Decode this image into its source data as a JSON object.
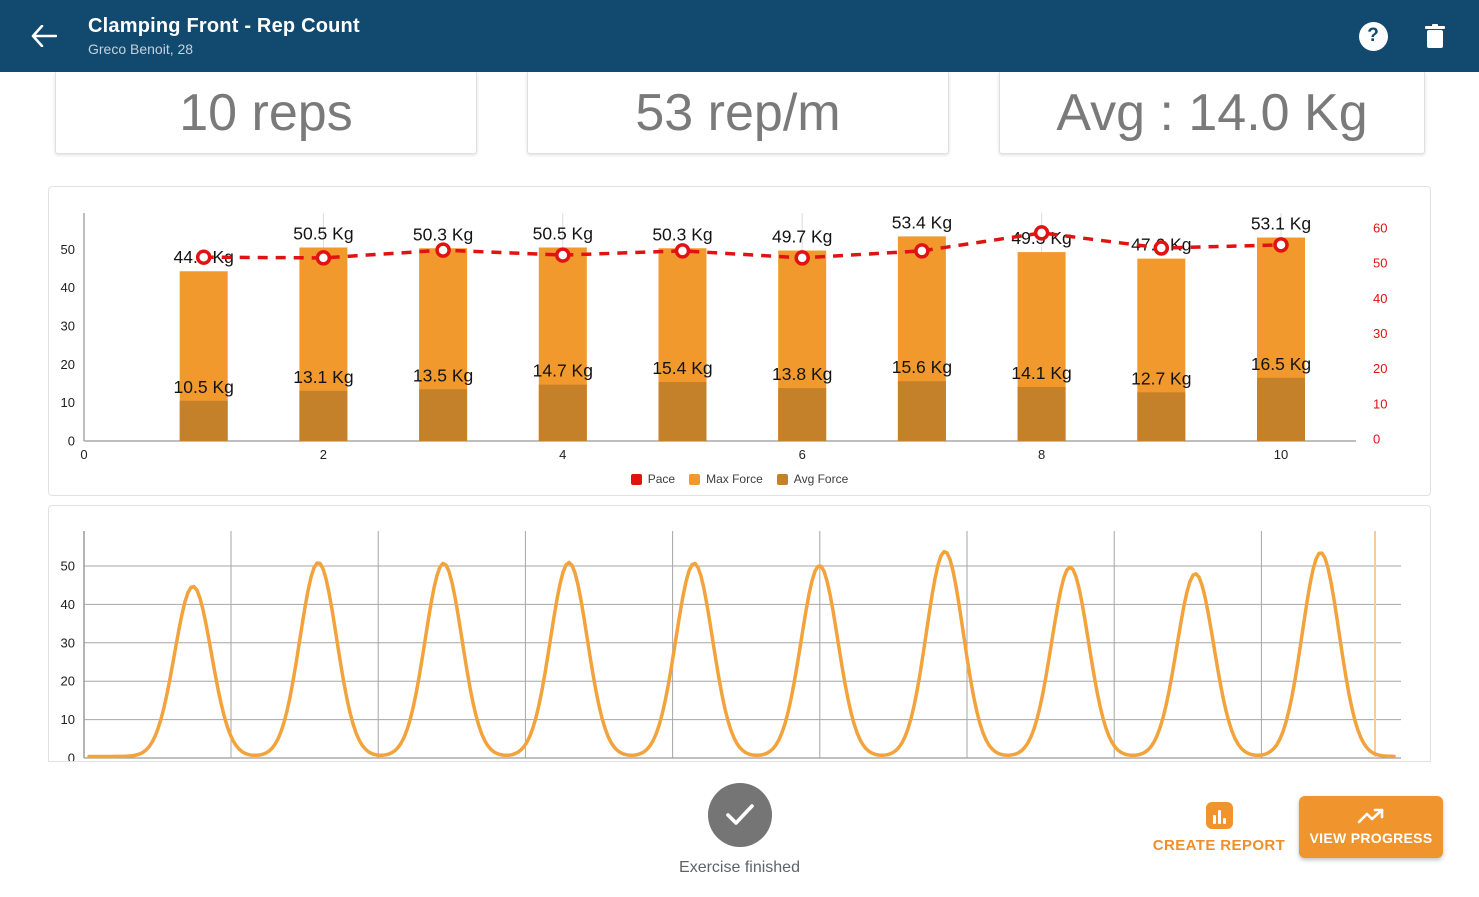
{
  "app_bar": {
    "title": "Clamping Front - Rep Count",
    "subtitle": "Greco Benoit, 28",
    "help_glyph": "?",
    "background": "#11496F"
  },
  "stats": {
    "reps": "10 reps",
    "pace": "53 rep/m",
    "avg": "Avg : 14.0 Kg"
  },
  "chart_data": [
    {
      "type": "bar",
      "title": "",
      "categories": [
        1,
        2,
        3,
        4,
        5,
        6,
        7,
        8,
        9,
        10
      ],
      "x_ticks": [
        0,
        2,
        4,
        6,
        8,
        10
      ],
      "left_axis": {
        "ticks": [
          0,
          10,
          20,
          30,
          40,
          50
        ],
        "range": [
          0,
          59.5
        ],
        "color": "#212121"
      },
      "right_axis": {
        "ticks": [
          0,
          10,
          20,
          30,
          40,
          50,
          60
        ],
        "range": [
          0,
          71.6
        ],
        "color": "#E11212"
      },
      "series": [
        {
          "name": "Pace",
          "type": "line",
          "axis": "right",
          "color": "#E11212",
          "style": "dashed",
          "values": [
            51.7,
            51.5,
            53.7,
            52.3,
            53.5,
            51.5,
            53.5,
            58.6,
            54.3,
            55.2
          ]
        },
        {
          "name": "Max Force",
          "type": "bar",
          "axis": "left",
          "color": "#F2992E",
          "values": [
            44.3,
            50.5,
            50.3,
            50.5,
            50.3,
            49.7,
            53.4,
            49.3,
            47.6,
            53.1
          ],
          "labels": [
            "44.3 Kg",
            "50.5 Kg",
            "50.3 Kg",
            "50.5 Kg",
            "50.3 Kg",
            "49.7 Kg",
            "53.4 Kg",
            "49.3 Kg",
            "47.6 Kg",
            "53.1 Kg"
          ]
        },
        {
          "name": "Avg Force",
          "type": "bar",
          "axis": "left",
          "color": "#C5802A",
          "values": [
            10.5,
            13.1,
            13.5,
            14.7,
            15.4,
            13.8,
            15.6,
            14.1,
            12.7,
            16.5
          ],
          "labels": [
            "10.5 Kg",
            "13.1 Kg",
            "13.5 Kg",
            "14.7 Kg",
            "15.4 Kg",
            "13.8 Kg",
            "15.6 Kg",
            "14.1 Kg",
            "12.7 Kg",
            "16.5 Kg"
          ]
        }
      ],
      "legend": {
        "position": "bottom",
        "items": [
          "Pace",
          "Max Force",
          "Avg Force"
        ]
      },
      "grid": "vertical-only"
    },
    {
      "type": "line",
      "title": "",
      "ylabel": "",
      "y_ticks": [
        0,
        10,
        20,
        30,
        40,
        50
      ],
      "ylim": [
        0,
        59
      ],
      "color": "#F2A33C",
      "baseline": 0.4,
      "peaks": [
        44.3,
        50.5,
        50.3,
        50.5,
        50.3,
        49.7,
        53.4,
        49.3,
        47.6,
        53.1
      ],
      "grid": true,
      "cursor_color": "#F7CDA0"
    }
  ],
  "footer": {
    "status_label": "Exercise finished",
    "create_report_label": "CREATE REPORT",
    "view_progress_label": "VIEW PROGRESS"
  },
  "colors": {
    "navy": "#11496F",
    "orange": "#F0942D",
    "red": "#E11212",
    "gray_text": "#757575"
  }
}
